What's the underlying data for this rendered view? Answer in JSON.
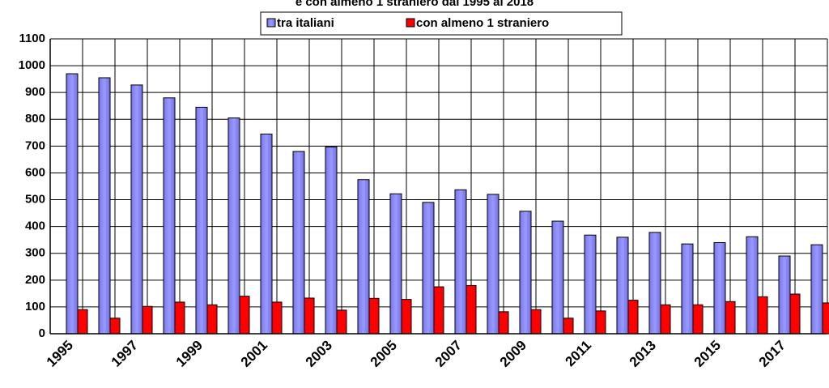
{
  "chart_data": {
    "type": "bar",
    "title": "e con almeno 1 straniero dal 1995 al 2018",
    "categories": [
      "1995",
      null,
      "1997",
      null,
      "1999",
      null,
      "2001",
      null,
      "2003",
      null,
      "2005",
      null,
      "2007",
      null,
      "2009",
      null,
      "2011",
      null,
      "2013",
      null,
      "2015",
      null,
      "2017",
      null
    ],
    "series": [
      {
        "name": "tra italiani",
        "color": "#9999ff",
        "values": [
          970,
          955,
          928,
          880,
          845,
          805,
          745,
          680,
          697,
          575,
          522,
          490,
          537,
          520,
          457,
          420,
          368,
          360,
          378,
          335,
          340,
          362,
          290,
          332
        ]
      },
      {
        "name": "con almeno 1 straniero",
        "color": "#ff0000",
        "values": [
          90,
          58,
          102,
          118,
          108,
          140,
          118,
          133,
          88,
          132,
          128,
          175,
          180,
          82,
          90,
          58,
          85,
          125,
          108,
          108,
          120,
          138,
          148,
          115
        ]
      }
    ],
    "ylim": [
      0,
      1100
    ],
    "yticks": [
      0,
      100,
      200,
      300,
      400,
      500,
      600,
      700,
      800,
      900,
      1000,
      1100
    ],
    "grid": true
  }
}
